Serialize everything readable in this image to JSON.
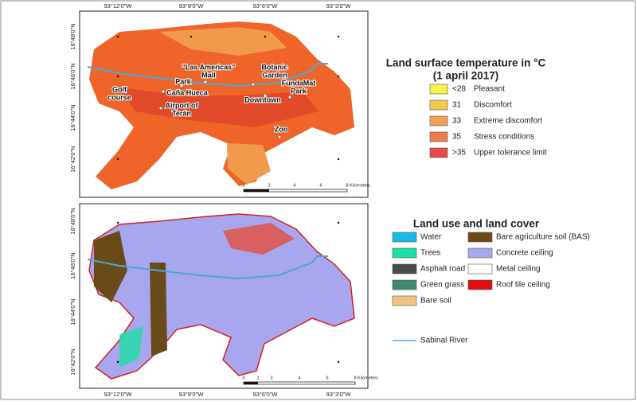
{
  "coords": {
    "lon": [
      "93°12'0\"W",
      "93°9'0\"W",
      "93°6'0\"W",
      "93°3'0\"W"
    ],
    "lat": [
      "16°48'0\"N",
      "16°46'0\"N",
      "16°44'0\"N",
      "16°42'0\"N"
    ]
  },
  "places": [
    [
      "Golf",
      "course"
    ],
    [
      "Park"
    ],
    [
      "Caña Hueca"
    ],
    [
      "\"Las Americas\"",
      "Mall"
    ],
    [
      "Airport of",
      "Terán"
    ],
    [
      "Botanic",
      "Garden"
    ],
    [
      "Downtown"
    ],
    [
      "FundaMat",
      "Park"
    ],
    [
      "Zoo"
    ]
  ],
  "scale_top": [
    "0",
    "2",
    "4",
    "6",
    "8",
    "Kilometers"
  ],
  "scale_bottom": [
    "0",
    "1",
    "2",
    "4",
    "6",
    "8",
    "Kilometers"
  ],
  "temperature_legend": {
    "title": "Land surface temperature in °C",
    "subtitle": "(1 april 2017)",
    "items": [
      {
        "value": "<28",
        "label": "Pleasant",
        "color": "#f6f24a"
      },
      {
        "value": "31",
        "label": "Discomfort",
        "color": "#f4c84e"
      },
      {
        "value": "33",
        "label": "Extreme discomfort",
        "color": "#f2a252"
      },
      {
        "value": "35",
        "label": "Stress conditions",
        "color": "#f07a4c"
      },
      {
        "value": ">35",
        "label": "Upper tolerance limit",
        "color": "#ec4a4a"
      }
    ]
  },
  "landcover_legend": {
    "title": "Land use and land cover",
    "items": [
      {
        "label": "Water",
        "color": "#1ab8e8"
      },
      {
        "label": "Trees",
        "color": "#1ee0a6"
      },
      {
        "label": "Asphalt road",
        "color": "#4a4a4a"
      },
      {
        "label": "Green grass",
        "color": "#3d8a6c"
      },
      {
        "label": "Bare soil",
        "color": "#f0c484"
      },
      {
        "label": "Bare agriculture soil (BAS)",
        "color": "#6b4a1a"
      },
      {
        "label": "Concrete ceiling",
        "color": "#a9a6f0"
      },
      {
        "label": "Metal ceiling",
        "color": "#ffffff"
      },
      {
        "label": "Roof tile ceiling",
        "color": "#e01010"
      }
    ],
    "river": "Sabinal River"
  }
}
